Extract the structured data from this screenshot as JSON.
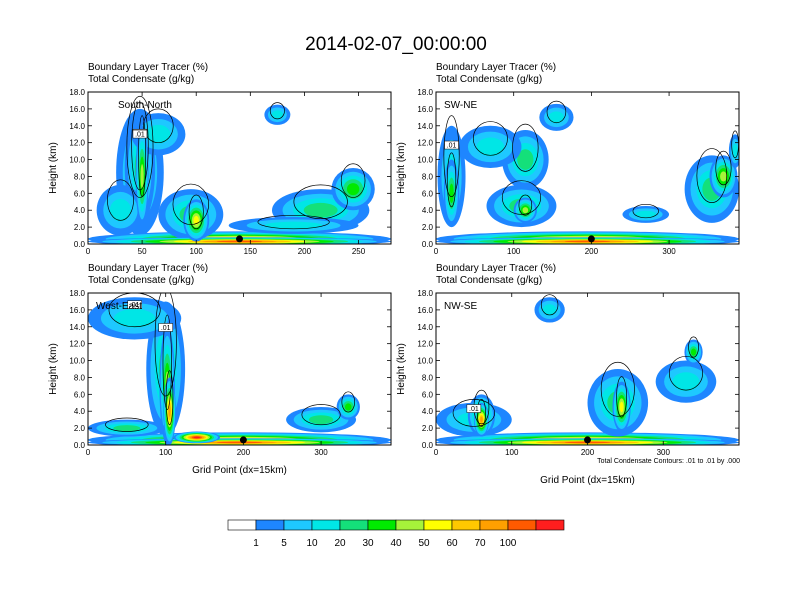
{
  "figure": {
    "title": "2014-02-07_00:00:00",
    "footnote": "Total Condensate Contours: .01 to .01 by .000"
  },
  "colorbar": {
    "colors": [
      "#ffffff",
      "#1e86ff",
      "#1ec8ff",
      "#00e6e6",
      "#14e07a",
      "#00ea00",
      "#a6f33a",
      "#ffff00",
      "#ffc800",
      "#ffa000",
      "#ff5a00",
      "#ff1e1e"
    ],
    "labels": [
      "1",
      "5",
      "10",
      "20",
      "30",
      "40",
      "50",
      "60",
      "70",
      "100"
    ]
  },
  "chart_data": [
    {
      "type": "heatmap",
      "panel": "south-north",
      "title_line1": "Boundary Layer Tracer    (%)",
      "title_line2": "Total Condensate    (g/kg)",
      "inset_label": "South-North",
      "ylabel": "Height (km)",
      "xlabel": "",
      "xlim": [
        0,
        280
      ],
      "ylim": [
        0,
        18
      ],
      "xticks": [
        0,
        50,
        100,
        150,
        200,
        250
      ],
      "yticks": [
        "0.0",
        "2.0",
        "4.0",
        "6.0",
        "8.0",
        "10.0",
        "12.0",
        "14.0",
        "16.0",
        "18.0"
      ],
      "marker_x": 140,
      "contour_labels": [
        ".01",
        ".01"
      ],
      "blobs": [
        {
          "x": 48,
          "y": 8.5,
          "rx": 22,
          "ry": 7.5,
          "level": 3
        },
        {
          "x": 48,
          "y": 9.0,
          "rx": 14,
          "ry": 6.5,
          "level": 4
        },
        {
          "x": 50,
          "y": 8.0,
          "rx": 6,
          "ry": 6.0,
          "level": 6
        },
        {
          "x": 30,
          "y": 4.0,
          "rx": 22,
          "ry": 3.0,
          "level": 3
        },
        {
          "x": 65,
          "y": 13.0,
          "rx": 25,
          "ry": 2.5,
          "level": 3
        },
        {
          "x": 95,
          "y": 3.5,
          "rx": 30,
          "ry": 3.0,
          "level": 4
        },
        {
          "x": 100,
          "y": 2.8,
          "rx": 12,
          "ry": 2.5,
          "level": 7
        },
        {
          "x": 215,
          "y": 4.0,
          "rx": 45,
          "ry": 2.5,
          "level": 4
        },
        {
          "x": 245,
          "y": 6.5,
          "rx": 20,
          "ry": 2.5,
          "level": 5
        },
        {
          "x": 190,
          "y": 2.2,
          "rx": 60,
          "ry": 1.0,
          "level": 3
        },
        {
          "x": 140,
          "y": 0.6,
          "rx": 140,
          "ry": 0.9,
          "level": 8
        },
        {
          "x": 140,
          "y": 0.3,
          "rx": 140,
          "ry": 0.5,
          "level": 10
        },
        {
          "x": 175,
          "y": 15.3,
          "rx": 12,
          "ry": 1.2,
          "level": 3
        }
      ]
    },
    {
      "type": "heatmap",
      "panel": "sw-ne",
      "title_line1": "Boundary Layer Tracer    (%)",
      "title_line2": "Total Condensate    (g/kg)",
      "inset_label": "SW-NE",
      "ylabel": "Height (km)",
      "xlabel": "",
      "xlim": [
        0,
        390
      ],
      "ylim": [
        0,
        18
      ],
      "xticks": [
        0,
        100,
        200,
        300
      ],
      "yticks": [
        "0.0",
        "2.0",
        "4.0",
        "6.0",
        "8.0",
        "10.0",
        "12.0",
        "14.0",
        "16.0",
        "18.0"
      ],
      "marker_x": 200,
      "contour_labels": [
        ".01"
      ],
      "blobs": [
        {
          "x": 20,
          "y": 8.0,
          "rx": 18,
          "ry": 6.0,
          "level": 3
        },
        {
          "x": 20,
          "y": 6.0,
          "rx": 10,
          "ry": 4.0,
          "level": 5
        },
        {
          "x": 70,
          "y": 11.5,
          "rx": 40,
          "ry": 2.5,
          "level": 3
        },
        {
          "x": 115,
          "y": 10.0,
          "rx": 30,
          "ry": 3.5,
          "level": 4
        },
        {
          "x": 110,
          "y": 4.5,
          "rx": 45,
          "ry": 2.5,
          "level": 4
        },
        {
          "x": 115,
          "y": 4.0,
          "rx": 15,
          "ry": 1.5,
          "level": 6
        },
        {
          "x": 155,
          "y": 15.0,
          "rx": 22,
          "ry": 1.6,
          "level": 3
        },
        {
          "x": 270,
          "y": 3.5,
          "rx": 30,
          "ry": 1.0,
          "level": 3
        },
        {
          "x": 355,
          "y": 6.5,
          "rx": 35,
          "ry": 4.0,
          "level": 4
        },
        {
          "x": 370,
          "y": 8.0,
          "rx": 18,
          "ry": 2.5,
          "level": 6
        },
        {
          "x": 195,
          "y": 0.6,
          "rx": 195,
          "ry": 0.9,
          "level": 8
        },
        {
          "x": 195,
          "y": 0.3,
          "rx": 195,
          "ry": 0.5,
          "level": 10
        },
        {
          "x": 385,
          "y": 11.0,
          "rx": 8,
          "ry": 2.0,
          "level": 3
        }
      ]
    },
    {
      "type": "heatmap",
      "panel": "west-east",
      "title_line1": "Boundary Layer Tracer    (%)",
      "title_line2": "Total Condensate    (g/kg)",
      "inset_label": "West-East",
      "ylabel": "Height (km)",
      "xlabel": "Grid Point (dx=15km)",
      "xlim": [
        0,
        390
      ],
      "ylim": [
        0,
        18
      ],
      "xticks": [
        0,
        100,
        200,
        300
      ],
      "yticks": [
        "0.0",
        "2.0",
        "4.0",
        "6.0",
        "8.0",
        "10.0",
        "12.0",
        "14.0",
        "16.0",
        "18.0"
      ],
      "marker_x": 200,
      "contour_labels": [
        ".01",
        ".01"
      ],
      "blobs": [
        {
          "x": 60,
          "y": 15.0,
          "rx": 60,
          "ry": 2.5,
          "level": 3
        },
        {
          "x": 100,
          "y": 9.0,
          "rx": 25,
          "ry": 8.0,
          "level": 4
        },
        {
          "x": 102,
          "y": 7.0,
          "rx": 10,
          "ry": 7.0,
          "level": 6
        },
        {
          "x": 105,
          "y": 4.0,
          "rx": 8,
          "ry": 4.0,
          "level": 9
        },
        {
          "x": 50,
          "y": 2.0,
          "rx": 50,
          "ry": 1.0,
          "level": 4
        },
        {
          "x": 300,
          "y": 3.0,
          "rx": 45,
          "ry": 1.5,
          "level": 4
        },
        {
          "x": 335,
          "y": 4.5,
          "rx": 15,
          "ry": 1.5,
          "level": 5
        },
        {
          "x": 195,
          "y": 0.6,
          "rx": 195,
          "ry": 0.9,
          "level": 8
        },
        {
          "x": 195,
          "y": 0.3,
          "rx": 195,
          "ry": 0.5,
          "level": 10
        },
        {
          "x": 140,
          "y": 0.9,
          "rx": 30,
          "ry": 0.7,
          "level": 11
        }
      ]
    },
    {
      "type": "heatmap",
      "panel": "nw-se",
      "title_line1": "Boundary Layer Tracer    (%)",
      "title_line2": "Total Condensate    (g/kg)",
      "inset_label": "NW-SE",
      "ylabel": "Height (km)",
      "xlabel": "Grid Point (dx=15km)",
      "xlim": [
        0,
        400
      ],
      "ylim": [
        0,
        18
      ],
      "xticks": [
        0,
        100,
        200,
        300
      ],
      "yticks": [
        "0.0",
        "2.0",
        "4.0",
        "6.0",
        "8.0",
        "10.0",
        "12.0",
        "14.0",
        "16.0",
        "18.0"
      ],
      "marker_x": 200,
      "contour_labels": [
        ".01"
      ],
      "blobs": [
        {
          "x": 50,
          "y": 3.0,
          "rx": 50,
          "ry": 2.0,
          "level": 3
        },
        {
          "x": 60,
          "y": 3.5,
          "rx": 18,
          "ry": 2.5,
          "level": 6
        },
        {
          "x": 60,
          "y": 3.0,
          "rx": 10,
          "ry": 2.0,
          "level": 9
        },
        {
          "x": 240,
          "y": 5.0,
          "rx": 40,
          "ry": 4.0,
          "level": 4
        },
        {
          "x": 245,
          "y": 4.5,
          "rx": 12,
          "ry": 3.0,
          "level": 7
        },
        {
          "x": 330,
          "y": 7.5,
          "rx": 40,
          "ry": 2.5,
          "level": 3
        },
        {
          "x": 340,
          "y": 11.0,
          "rx": 12,
          "ry": 1.5,
          "level": 5
        },
        {
          "x": 150,
          "y": 16.0,
          "rx": 20,
          "ry": 1.5,
          "level": 3
        },
        {
          "x": 200,
          "y": 0.6,
          "rx": 200,
          "ry": 0.9,
          "level": 8
        },
        {
          "x": 200,
          "y": 0.3,
          "rx": 200,
          "ry": 0.5,
          "level": 10
        }
      ]
    }
  ]
}
